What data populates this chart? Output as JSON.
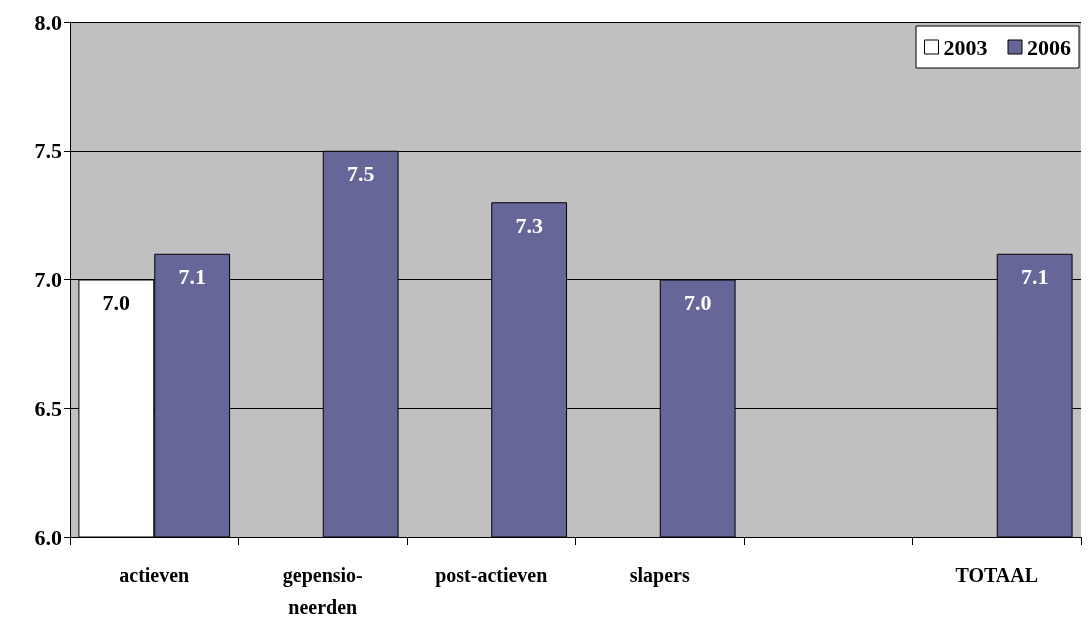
{
  "chart_data": {
    "type": "bar",
    "categories": [
      "actieven",
      "gepensio-\nneerden",
      "post-actieven",
      "slapers",
      null,
      "TOTAAL"
    ],
    "series": [
      {
        "name": "2003",
        "color": "#ffffff",
        "values": [
          7.0,
          null,
          null,
          null,
          null,
          null
        ],
        "value_labels": [
          "7.0",
          null,
          null,
          null,
          null,
          null
        ]
      },
      {
        "name": "2006",
        "color": "#666699",
        "values": [
          7.1,
          7.5,
          7.3,
          7.0,
          null,
          7.1
        ],
        "value_labels": [
          "7.1",
          "7.5",
          "7.3",
          "7.0",
          null,
          "7.1"
        ]
      }
    ],
    "ylim": [
      6,
      8
    ],
    "yticks": [
      {
        "value": 6,
        "label": "6.0"
      },
      {
        "value": 6.5,
        "label": "6.5"
      },
      {
        "value": 7,
        "label": "7.0"
      },
      {
        "value": 7.5,
        "label": "7.5"
      },
      {
        "value": 8,
        "label": "8.0"
      }
    ],
    "grid": "y",
    "legend": "top right"
  }
}
